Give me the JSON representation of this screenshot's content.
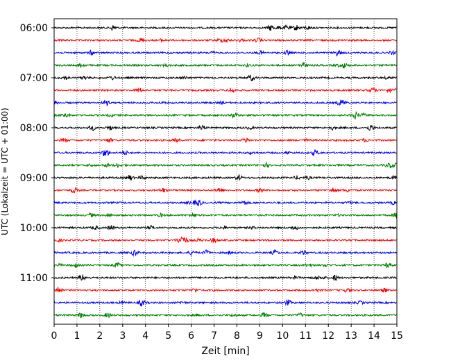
{
  "chart_data": {
    "type": "line",
    "subtype": "seismogram-helicorder",
    "xlabel": "Zeit  [min]",
    "ylabel": "UTC (Lokalzeit = UTC + 01:00)",
    "xlim": [
      0,
      15
    ],
    "x_ticks": [
      "0",
      "1",
      "2",
      "3",
      "4",
      "5",
      "6",
      "7",
      "8",
      "9",
      "10",
      "11",
      "12",
      "13",
      "14",
      "15"
    ],
    "y_ticks": [
      "06:00",
      "07:00",
      "08:00",
      "09:00",
      "10:00",
      "11:00"
    ],
    "trace_interval_minutes": 15,
    "trace_count": 24,
    "trace_colors": [
      "#000000",
      "#ff0000",
      "#0000ff",
      "#008000"
    ],
    "grid": "vertical dotted at each minute"
  }
}
